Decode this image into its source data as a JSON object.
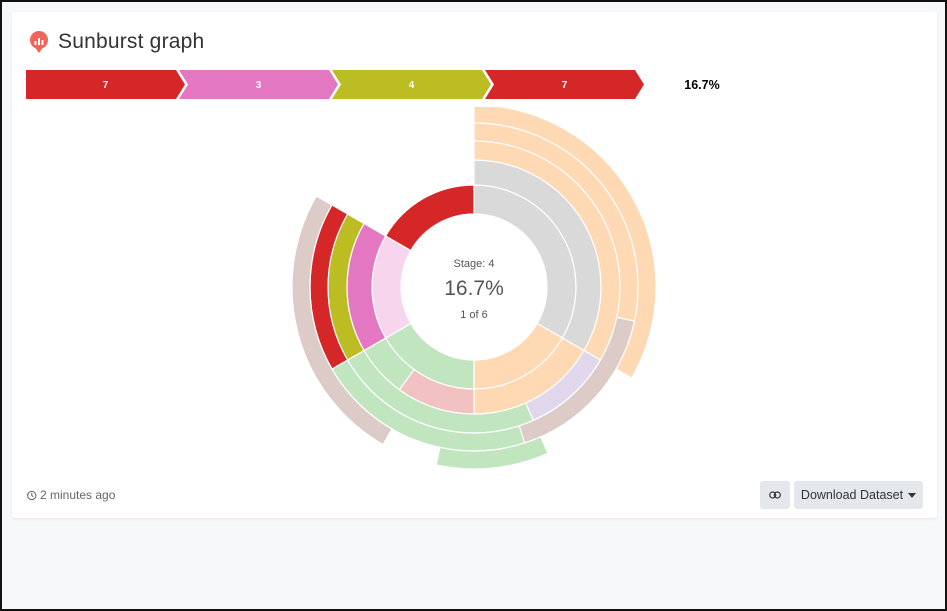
{
  "page": {
    "title": "Sunburst graph"
  },
  "footer": {
    "timestamp": "2 minutes ago",
    "download_label": "Download Dataset"
  },
  "chart_data": {
    "type": "sunburst",
    "breadcrumb": {
      "steps": [
        {
          "label": "7",
          "color": "#d62728"
        },
        {
          "label": "3",
          "color": "#e377c2"
        },
        {
          "label": "4",
          "color": "#bcbd22"
        },
        {
          "label": "7",
          "color": "#d62728"
        }
      ],
      "percentage": "16.7%"
    },
    "center": {
      "label": "Stage: 4",
      "value": "16.7%",
      "count": "1 of 6"
    },
    "total": 6,
    "rings": [
      [
        {
          "name": "",
          "value": 2,
          "color": "#d9d9d9"
        },
        {
          "name": "",
          "value": 1,
          "color": "#ffd8b4"
        },
        {
          "name": "",
          "value": 1,
          "color": "#c1e6bf"
        },
        {
          "name": "",
          "value": 1,
          "color": "#f7d5ec"
        },
        {
          "name": "7",
          "value": 1,
          "color": "#d62728"
        }
      ],
      [
        {
          "name": "",
          "value": 2,
          "color": "#d9d9d9"
        },
        {
          "name": "",
          "value": 1,
          "color": "#ffd8b4"
        },
        {
          "name": "",
          "value": 0.6,
          "color": "#f2c2c2"
        },
        {
          "name": "",
          "value": 0.4,
          "color": "#c1e6bf"
        },
        {
          "name": "3",
          "value": 1,
          "color": "#e377c2"
        }
      ],
      [
        {
          "name": "",
          "value": 2,
          "color": "#ffd8b4"
        },
        {
          "name": "",
          "value": 0.6,
          "color": "#e1d7ec"
        },
        {
          "name": "",
          "value": 1.4,
          "color": "#c1e6bf"
        },
        {
          "name": "4",
          "value": 1,
          "color": "#bcbd22"
        }
      ],
      [
        {
          "name": "",
          "value": 1.7,
          "color": "#ffd8b4"
        },
        {
          "name": "",
          "value": 1.0,
          "color": "#dccbc6"
        },
        {
          "name": "",
          "value": 1.3,
          "color": "#c1e6bf"
        },
        {
          "name": "7",
          "value": 1,
          "color": "#d62728"
        }
      ],
      [
        {
          "name": "",
          "value": 2,
          "color": "#ffd8b4"
        },
        {
          "name": "",
          "value": 0.6,
          "color": null
        },
        {
          "name": "",
          "value": 0.6,
          "color": "#c1e6bf"
        },
        {
          "name": "",
          "value": 0.3,
          "color": null
        },
        {
          "name": "",
          "value": 1.5,
          "color": "#dccbc6"
        }
      ]
    ]
  }
}
